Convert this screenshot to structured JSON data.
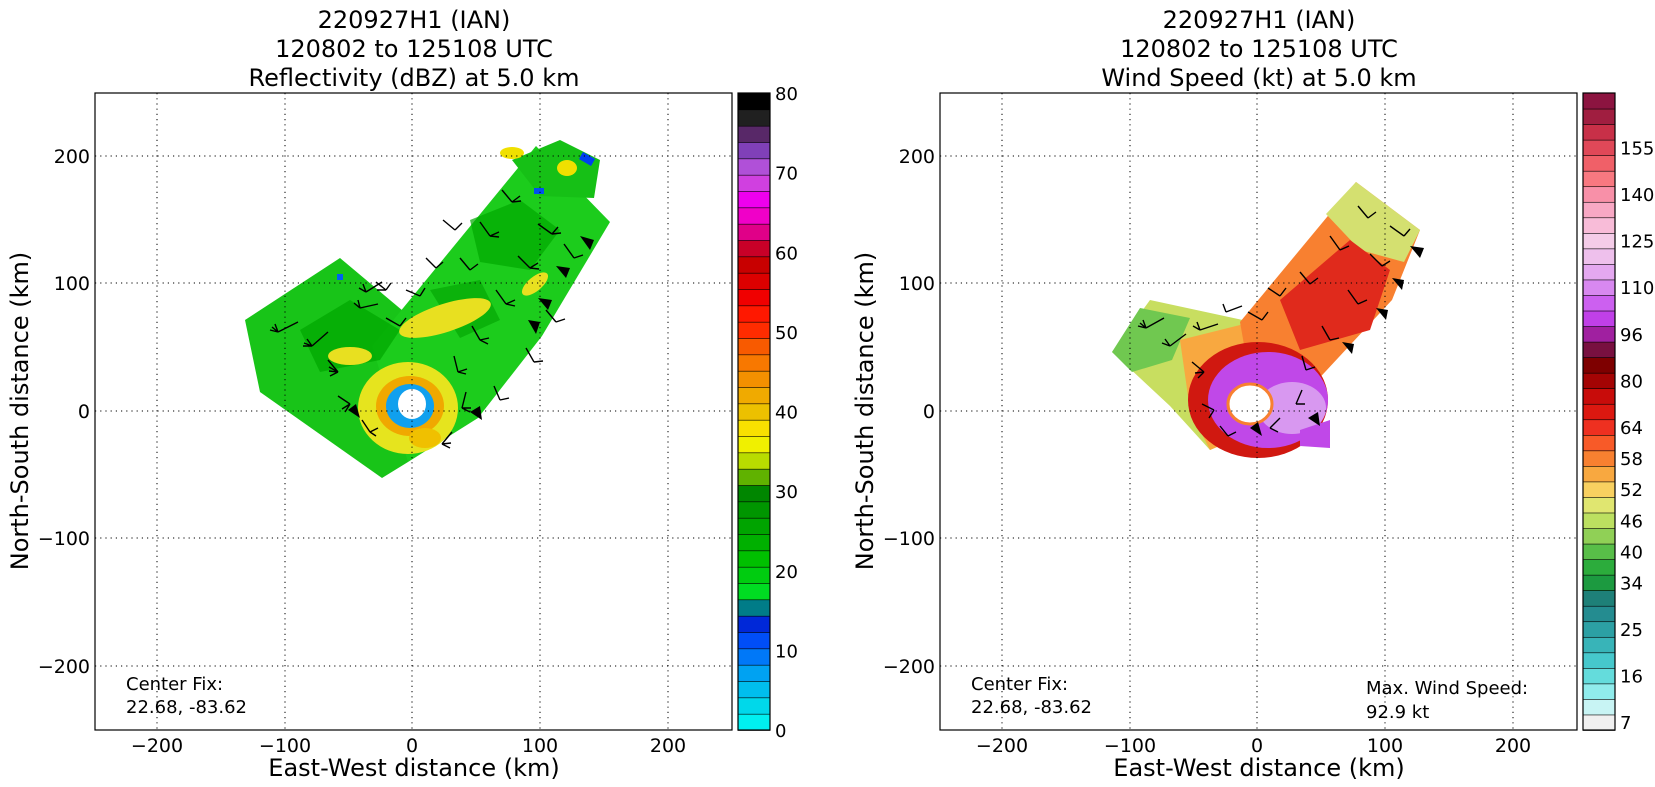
{
  "panels": [
    {
      "title_lines": [
        "220927H1 (IAN)",
        "120802 to 125108 UTC",
        "Reflectivity (dBZ) at 5.0 km"
      ],
      "center_fix_label": "Center Fix:",
      "center_fix_value": "22.68, -83.62",
      "max_wind_label": "",
      "max_wind_value": "",
      "colorbar": {
        "colors": [
          "#00f0f0",
          "#00d8ea",
          "#00beee",
          "#00a2f2",
          "#0078f8",
          "#004ef8",
          "#0028d8",
          "#007c88",
          "#00dc22",
          "#00cc10",
          "#00c000",
          "#00b000",
          "#00a400",
          "#009600",
          "#008600",
          "#60b200",
          "#b8dc00",
          "#f0f000",
          "#f8e000",
          "#ecc000",
          "#f0aa00",
          "#f49000",
          "#f87800",
          "#f85a00",
          "#ff2c00",
          "#ff1800",
          "#f00000",
          "#dc0000",
          "#c80000",
          "#c80028",
          "#e00088",
          "#f000c8",
          "#ee00ee",
          "#d040e0",
          "#b050d8",
          "#8040b8",
          "#582868",
          "#202020",
          "#000000"
        ],
        "ticks": [
          "0",
          "10",
          "20",
          "30",
          "40",
          "50",
          "60",
          "70",
          "80"
        ]
      }
    },
    {
      "title_lines": [
        "220927H1 (IAN)",
        "120802 to 125108 UTC",
        "Wind Speed (kt) at 5.0 km"
      ],
      "center_fix_label": "Center Fix:",
      "center_fix_value": "22.68, -83.62",
      "max_wind_label": "Max. Wind Speed:",
      "max_wind_value": "92.9 kt",
      "colorbar": {
        "colors": [
          "#f0f0f0",
          "#c8f4f4",
          "#90ecec",
          "#64dcdc",
          "#46c8cc",
          "#38b4b8",
          "#2ca0a4",
          "#248c90",
          "#1e8078",
          "#1c9a40",
          "#2cac3c",
          "#58be48",
          "#90d056",
          "#bce060",
          "#e0e670",
          "#f8d060",
          "#f8a840",
          "#f88030",
          "#f85a28",
          "#ee3020",
          "#dc1810",
          "#c80c0a",
          "#a40404",
          "#7e0000",
          "#781040",
          "#a020a0",
          "#c040e8",
          "#cc60f0",
          "#d888f0",
          "#e4a8f0",
          "#eec0ec",
          "#f4cce8",
          "#f8bcd8",
          "#f8a8c4",
          "#f890a8",
          "#f87880",
          "#f06068",
          "#e04858",
          "#c83048",
          "#a01e40",
          "#8c1440"
        ],
        "ticks": [
          "7",
          "16",
          "25",
          "34",
          "40",
          "46",
          "52",
          "58",
          "64",
          "80",
          "96",
          "110",
          "125",
          "140",
          "155"
        ]
      },
      "chart_data": [
        {
          "type": "heatmap",
          "title": "220927H1 (IAN) 120802 to 125108 UTC Reflectivity (dBZ) at 5.0 km",
          "xlabel": "East-West distance (km)",
          "ylabel": "North-South distance (km)",
          "xlim": [
            -250,
            250
          ],
          "ylim": [
            -250,
            250
          ],
          "xticks": [
            -200,
            -100,
            0,
            100,
            200
          ],
          "yticks": [
            -200,
            -100,
            0,
            100,
            200
          ],
          "grid": true,
          "colorbar_label": "dBZ",
          "colorbar_range": [
            0,
            80
          ],
          "center_fix": [
            22.68,
            -83.62
          ]
        },
        {
          "type": "heatmap",
          "title": "220927H1 (IAN) 120802 to 125108 UTC Wind Speed (kt) at 5.0 km",
          "xlabel": "East-West distance (km)",
          "ylabel": "North-South distance (km)",
          "xlim": [
            -250,
            250
          ],
          "ylim": [
            -250,
            250
          ],
          "xticks": [
            -200,
            -100,
            0,
            100,
            200
          ],
          "yticks": [
            -200,
            -100,
            0,
            100,
            200
          ],
          "grid": true,
          "colorbar_label": "kt",
          "colorbar_range": [
            7,
            160
          ],
          "center_fix": [
            22.68,
            -83.62
          ],
          "max_wind_speed_kt": 92.9
        }
      ]
    }
  ],
  "axes": {
    "xlabel": "East-West distance (km)",
    "ylabel": "North-South distance (km)",
    "xtick_labels": [
      "−200",
      "−100",
      "0",
      "100",
      "200"
    ],
    "ytick_labels": [
      "200",
      "100",
      "0",
      "−100",
      "−200"
    ]
  },
  "chart_data": [
    {
      "type": "heatmap",
      "title": "220927H1 (IAN) 120802 to 125108 UTC Reflectivity (dBZ) at 5.0 km",
      "xlabel": "East-West distance (km)",
      "ylabel": "North-South distance (km)",
      "xlim": [
        -250,
        250
      ],
      "ylim": [
        -250,
        250
      ],
      "grid": true,
      "colorbar_ticks": [
        0,
        10,
        20,
        30,
        40,
        50,
        60,
        70,
        80
      ],
      "center_fix": [
        22.68,
        -83.62
      ]
    },
    {
      "type": "heatmap",
      "title": "220927H1 (IAN) 120802 to 125108 UTC Wind Speed (kt) at 5.0 km",
      "xlabel": "East-West distance (km)",
      "ylabel": "North-South distance (km)",
      "xlim": [
        -250,
        250
      ],
      "ylim": [
        -250,
        250
      ],
      "grid": true,
      "colorbar_ticks": [
        7,
        16,
        25,
        34,
        40,
        46,
        52,
        58,
        64,
        80,
        96,
        110,
        125,
        140,
        155
      ],
      "center_fix": [
        22.68,
        -83.62
      ],
      "max_wind_speed_kt": 92.9
    }
  ]
}
